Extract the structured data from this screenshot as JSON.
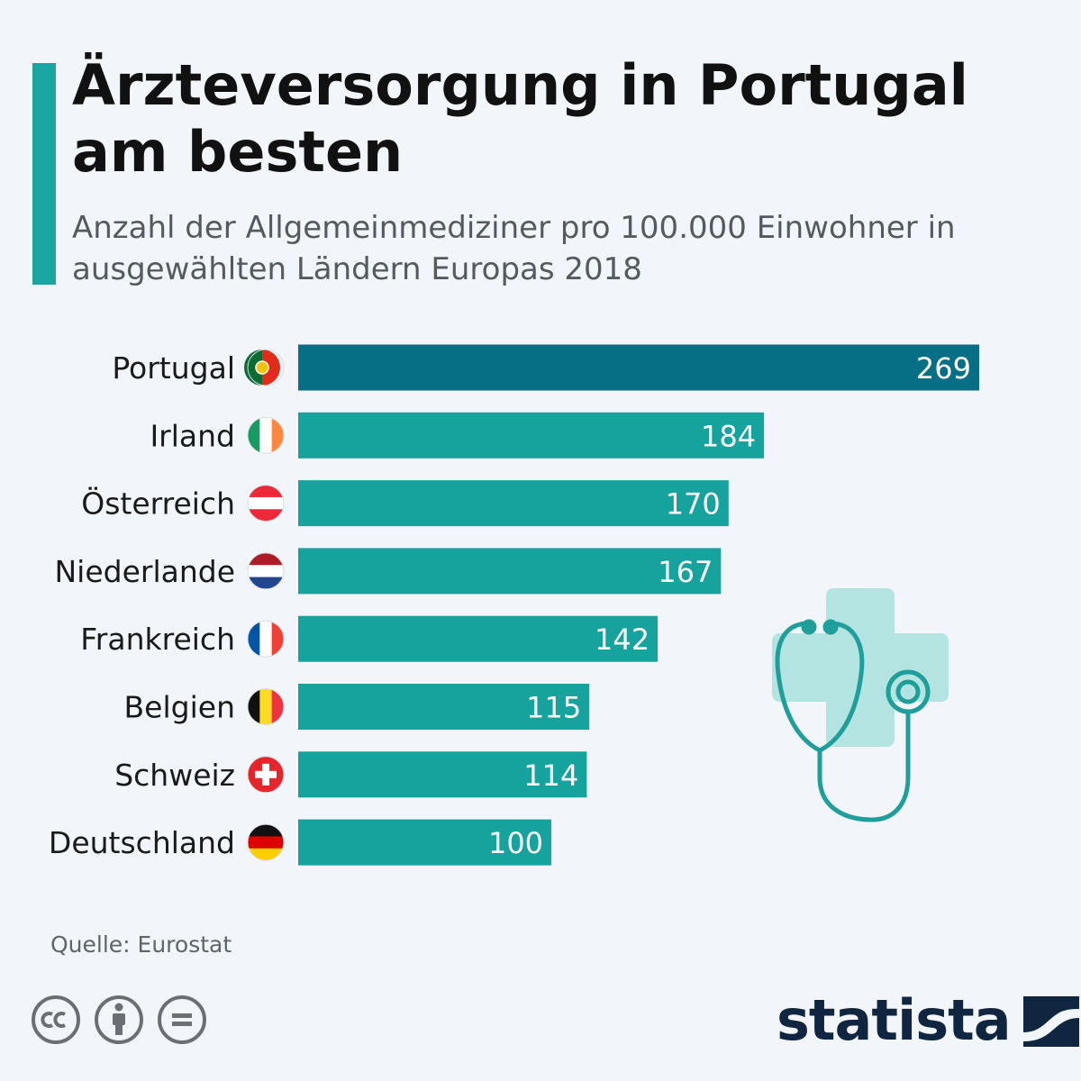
{
  "header": {
    "title": "Ärzteversorgung in Portugal am besten",
    "subtitle": "Anzahl der Allgemeinmediziner pro 100.000 Einwohner in ausgewählten Ländern Europas 2018"
  },
  "chart_data": {
    "type": "bar",
    "orientation": "horizontal",
    "categories": [
      "Portugal",
      "Irland",
      "Österreich",
      "Niederlande",
      "Frankreich",
      "Belgien",
      "Schweiz",
      "Deutschland"
    ],
    "values": [
      269,
      184,
      170,
      167,
      142,
      115,
      114,
      100
    ],
    "highlight_index": 0,
    "bar_color": "#16a29d",
    "highlight_color": "#066f86",
    "flags": [
      "portugal-flag-icon",
      "ireland-flag-icon",
      "austria-flag-icon",
      "netherlands-flag-icon",
      "france-flag-icon",
      "belgium-flag-icon",
      "switzerland-flag-icon",
      "germany-flag-icon"
    ],
    "title": "",
    "xlabel": "",
    "ylabel": ""
  },
  "footer": {
    "source": "Quelle: Eurostat",
    "logo": "statista",
    "license_icons": [
      "cc-icon",
      "attribution-icon",
      "no-derivatives-icon"
    ]
  }
}
